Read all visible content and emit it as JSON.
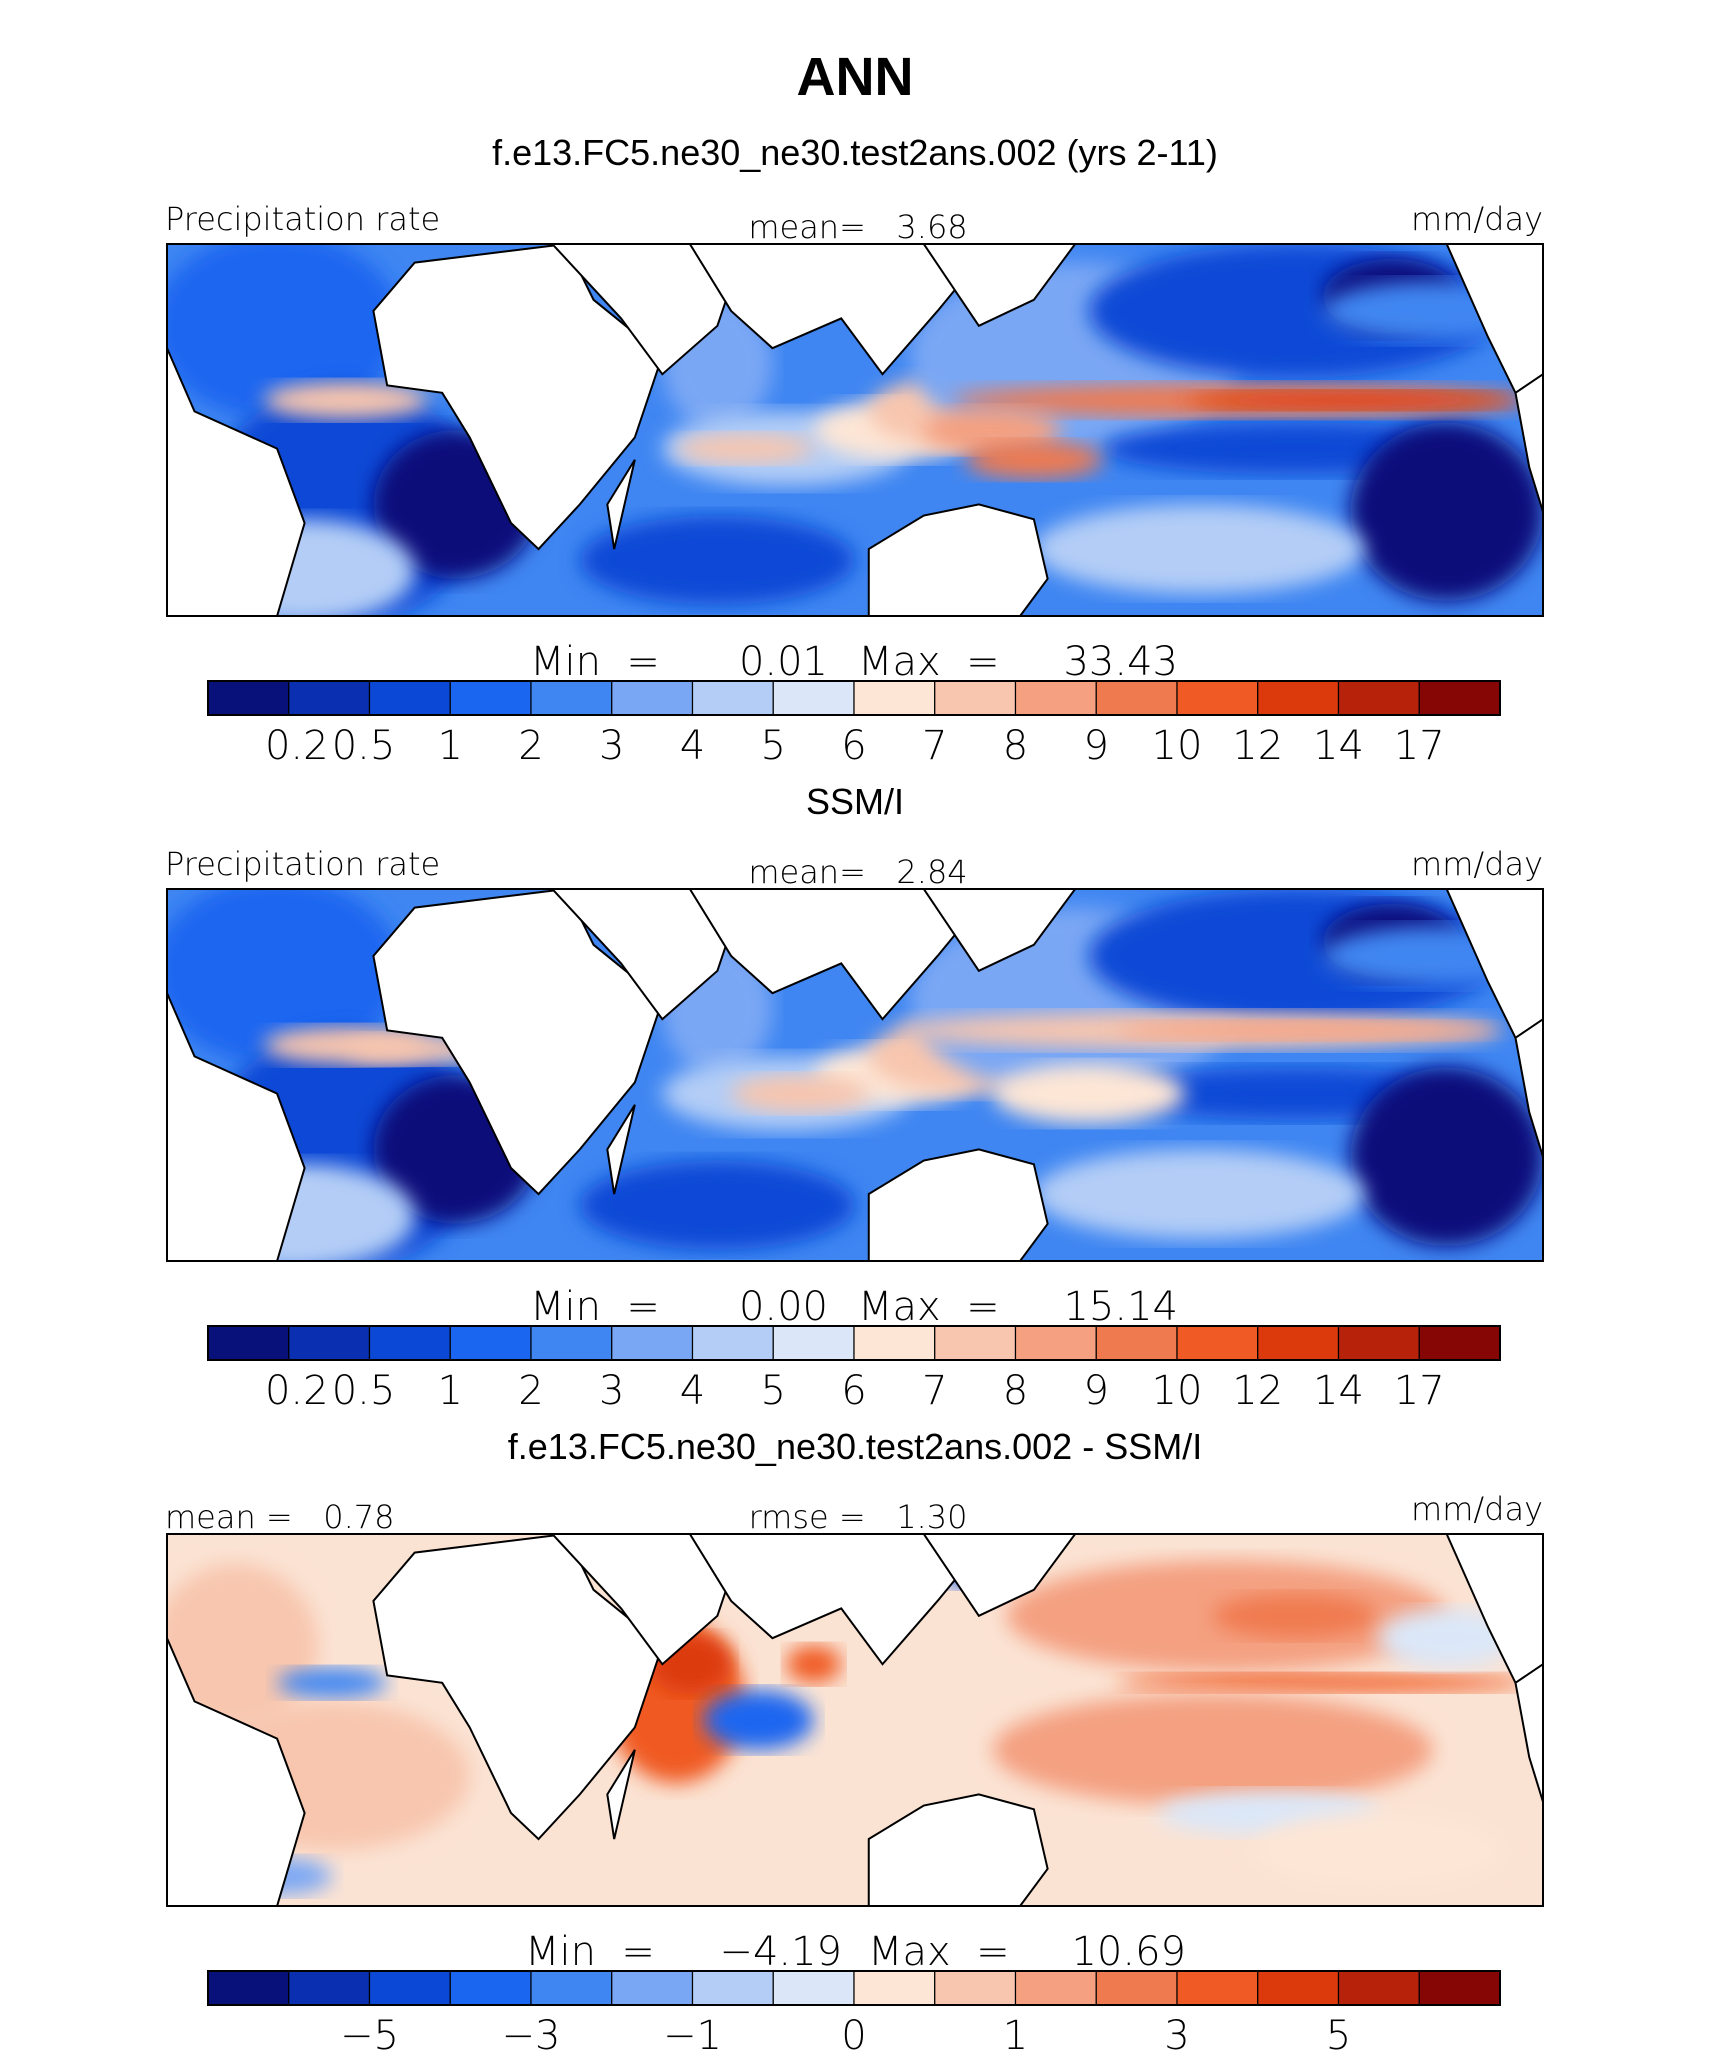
{
  "figure": {
    "title": "ANN",
    "colors": {
      "precip_scale": [
        "#08107a",
        "#0a2fb0",
        "#0b48d6",
        "#1a66f0",
        "#3f86f2",
        "#7aa7f4",
        "#b3cdf6",
        "#dbe7f8",
        "#fde6d6",
        "#f8c6ae",
        "#f4a081",
        "#f07a4f",
        "#f05a24",
        "#dc3a0c",
        "#b7220a",
        "#860606"
      ],
      "diff_scale": [
        "#08107a",
        "#0a2fb0",
        "#0b48d6",
        "#1a66f0",
        "#3f86f2",
        "#7aa7f4",
        "#b3cdf6",
        "#dbe7f8",
        "#fde6d6",
        "#f8c6ae",
        "#f4a081",
        "#f07a4f",
        "#f05a24",
        "#dc3a0c",
        "#b7220a",
        "#860606"
      ]
    }
  },
  "chart_data": [
    {
      "type": "heatmap",
      "title": "f.e13.FC5.ne30_ne30.test2ans.002 (yrs 2-11)",
      "left_label": "Precipitation rate",
      "center_label": "mean=   3.68",
      "units": "mm/day",
      "mean": 3.68,
      "min": 0.01,
      "max": 33.43,
      "minmax_text": {
        "min_label": "Min  =",
        "min_value": "0.01",
        "max_label": "Max  =",
        "max_value": "33.43"
      },
      "colorbar_ticks": [
        "0.2",
        "0.5",
        "1",
        "2",
        "3",
        "4",
        "5",
        "6",
        "7",
        "8",
        "9",
        "10",
        "12",
        "14",
        "17"
      ],
      "map_kind": "model"
    },
    {
      "type": "heatmap",
      "title": "SSM/I",
      "left_label": "Precipitation rate",
      "center_label": "mean=   2.84",
      "units": "mm/day",
      "mean": 2.84,
      "min": 0.0,
      "max": 15.14,
      "minmax_text": {
        "min_label": "Min  =",
        "min_value": "0.00",
        "max_label": "Max  =",
        "max_value": "15.14"
      },
      "colorbar_ticks": [
        "0.2",
        "0.5",
        "1",
        "2",
        "3",
        "4",
        "5",
        "6",
        "7",
        "8",
        "9",
        "10",
        "12",
        "14",
        "17"
      ],
      "map_kind": "obs"
    },
    {
      "type": "heatmap",
      "title": "f.e13.FC5.ne30_ne30.test2ans.002 - SSM/I",
      "left_label": "mean =   0.78",
      "center_label": "rmse =   1.30",
      "units": "mm/day",
      "mean": 0.78,
      "rmse": 1.3,
      "min": -4.19,
      "max": 10.69,
      "minmax_text": {
        "min_label": "Min  =",
        "min_value": "−4.19",
        "max_label": "Max  =",
        "max_value": "10.69"
      },
      "colorbar_ticks": [
        "−5",
        "−3",
        "−1",
        "0",
        "1",
        "3",
        "5"
      ],
      "map_kind": "diff"
    }
  ]
}
